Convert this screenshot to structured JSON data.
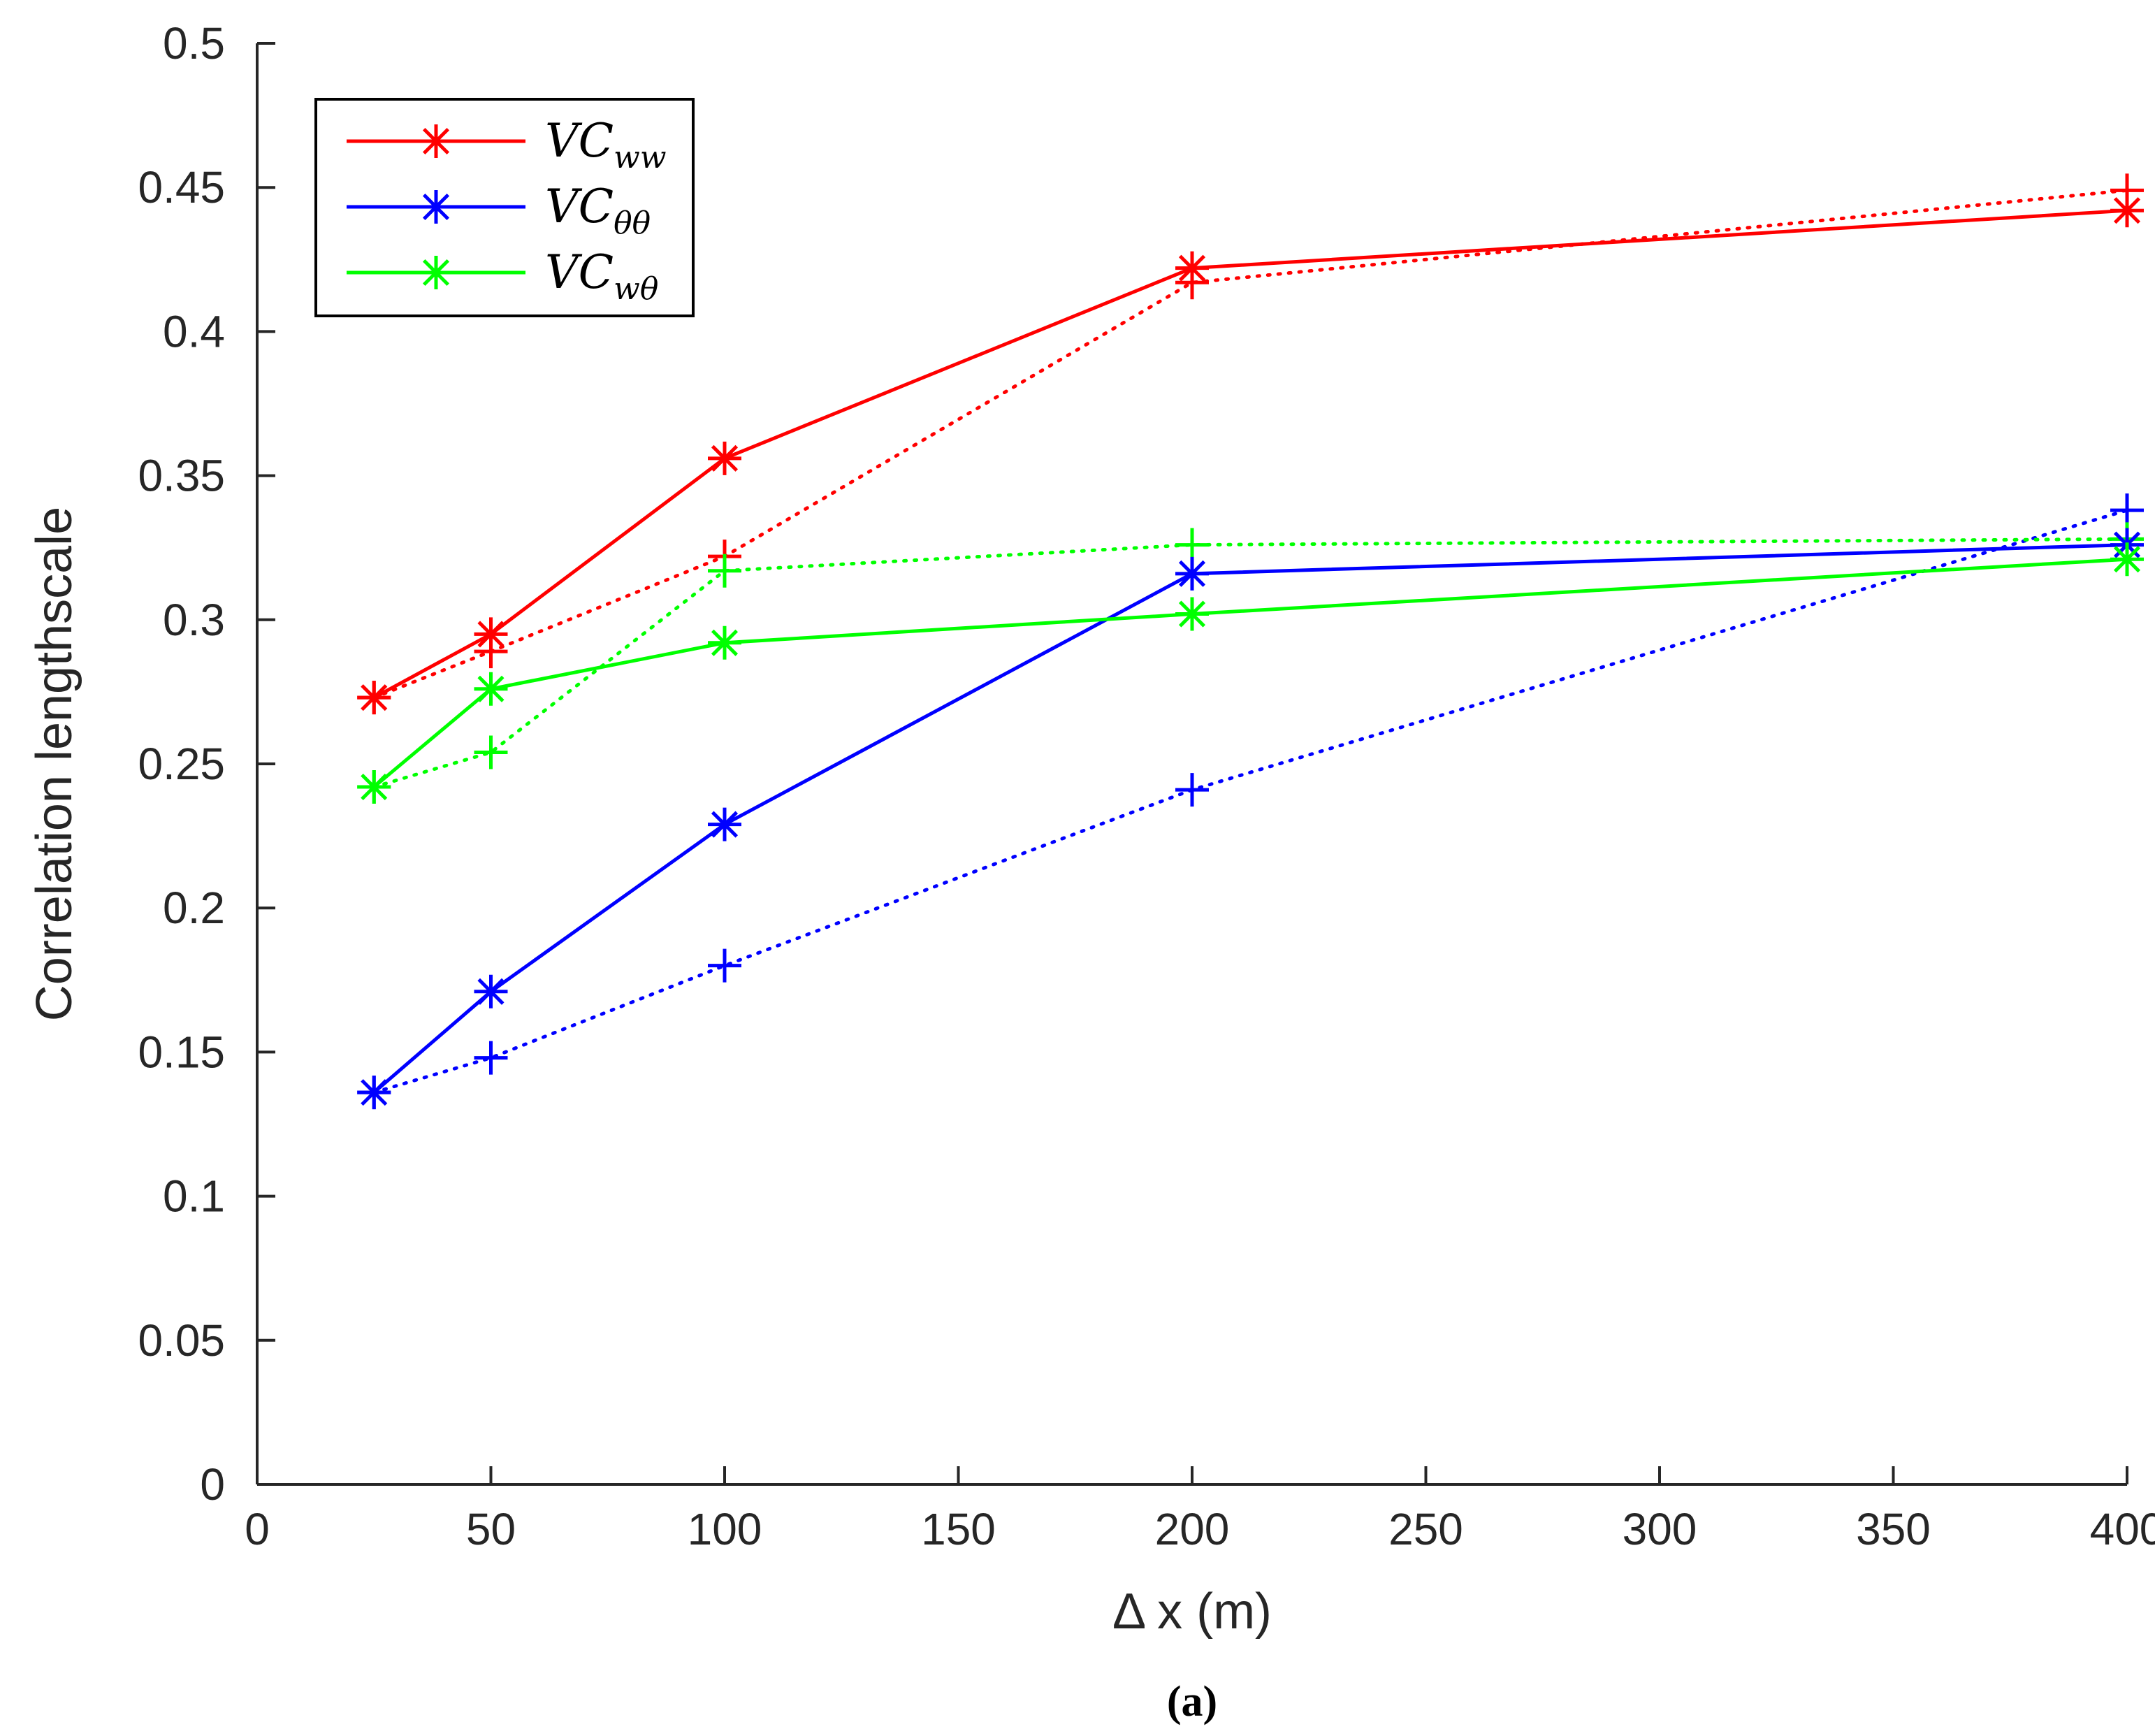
{
  "chart_data": {
    "type": "line",
    "title": "",
    "xlabel": "Δ x (m)",
    "ylabel": "Correlation lengthscale",
    "caption": "(a)",
    "xlim": [
      0,
      400
    ],
    "ylim": [
      0,
      0.5
    ],
    "xticks": [
      0,
      50,
      100,
      150,
      200,
      250,
      300,
      350,
      400
    ],
    "yticks": [
      0,
      0.05,
      0.1,
      0.15,
      0.2,
      0.25,
      0.3,
      0.35,
      0.4,
      0.45,
      0.5
    ],
    "xtick_labels": [
      "0",
      "50",
      "100",
      "150",
      "200",
      "250",
      "300",
      "350",
      "400"
    ],
    "ytick_labels": [
      "0",
      "0.05",
      "0.1",
      "0.15",
      "0.2",
      "0.25",
      "0.3",
      "0.35",
      "0.4",
      "0.45",
      "0.5"
    ],
    "x": [
      25,
      50,
      100,
      200,
      400
    ],
    "legend_position": "top-left",
    "series": [
      {
        "name": "VC_ww",
        "legend_main": "VC",
        "legend_sub": "ww",
        "color": "#ff0000",
        "style": "solid",
        "marker": "asterisk",
        "values": [
          0.273,
          0.295,
          0.356,
          0.422,
          0.442
        ]
      },
      {
        "name": "VC_θθ",
        "legend_main": "VC",
        "legend_sub": "θθ",
        "color": "#0000ff",
        "style": "solid",
        "marker": "asterisk",
        "values": [
          0.136,
          0.171,
          0.229,
          0.316,
          0.326
        ]
      },
      {
        "name": "VC_wθ",
        "legend_main": "VC",
        "legend_sub": "wθ",
        "color": "#00ff00",
        "style": "solid",
        "marker": "asterisk",
        "values": [
          0.242,
          0.276,
          0.292,
          0.302,
          0.321
        ]
      },
      {
        "name": "VC_ww (dotted)",
        "color": "#ff0000",
        "style": "dotted",
        "marker": "plus",
        "in_legend": false,
        "values": [
          0.273,
          0.289,
          0.322,
          0.417,
          0.449
        ]
      },
      {
        "name": "VC_θθ (dotted)",
        "color": "#0000ff",
        "style": "dotted",
        "marker": "plus",
        "in_legend": false,
        "values": [
          0.136,
          0.148,
          0.18,
          0.241,
          0.338
        ]
      },
      {
        "name": "VC_wθ (dotted)",
        "color": "#00ff00",
        "style": "dotted",
        "marker": "plus",
        "in_legend": false,
        "values": [
          0.242,
          0.254,
          0.317,
          0.326,
          0.328
        ]
      }
    ]
  }
}
